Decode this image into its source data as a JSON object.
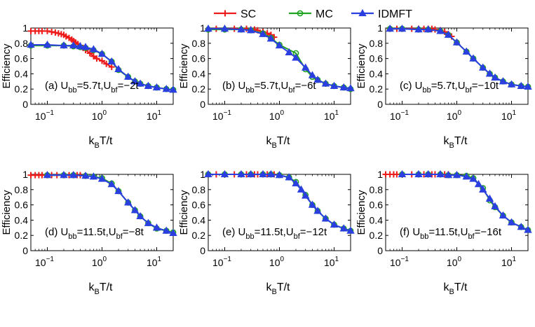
{
  "legend": [
    {
      "name": "SC",
      "color": "#ee1b1b",
      "marker": "plus"
    },
    {
      "name": "MC",
      "color": "#21a421",
      "marker": "circle"
    },
    {
      "name": "IDMFT",
      "color": "#2b3fe0",
      "marker": "triangle"
    }
  ],
  "chart_data": [
    {
      "type": "line",
      "panel_label": "(a) U",
      "ubb_sub": "bb",
      "ubb_val": "=5.7t,U",
      "ubf_sub": "bf",
      "ubf_val": "=−2t",
      "ylabel": "Efficiency",
      "xlabel_k": "k",
      "xlabel_sub": "B",
      "xlabel_rest": "T/t",
      "xscale": "log",
      "xlim": [
        0.05,
        20
      ],
      "ylim": [
        0,
        1
      ],
      "yticks": [
        "0",
        "0.2",
        "0.4",
        "0.6",
        "0.8",
        "1"
      ],
      "xticks": [
        {
          "base": "10",
          "exp": "−1"
        },
        {
          "base": "10",
          "exp": "0"
        },
        {
          "base": "10",
          "exp": "1"
        }
      ],
      "series": [
        {
          "name": "SC",
          "x": [
            0.05,
            0.06,
            0.07,
            0.08,
            0.1,
            0.12,
            0.14,
            0.16,
            0.18,
            0.2,
            0.22,
            0.25,
            0.28,
            0.3,
            0.33,
            0.36,
            0.4,
            0.45,
            0.5,
            0.6,
            0.7,
            0.8,
            1.0,
            1.2,
            1.5
          ],
          "y": [
            0.96,
            0.96,
            0.96,
            0.96,
            0.96,
            0.95,
            0.94,
            0.93,
            0.92,
            0.91,
            0.89,
            0.87,
            0.85,
            0.83,
            0.81,
            0.79,
            0.77,
            0.74,
            0.71,
            0.67,
            0.63,
            0.6,
            0.57,
            0.53,
            0.49
          ]
        },
        {
          "name": "MC",
          "x": [
            0.05,
            0.1,
            0.2,
            0.3,
            0.4,
            0.5,
            0.7,
            1.0,
            1.5,
            2.0,
            3.0,
            4.0,
            5.0,
            7.0,
            10.0,
            15.0,
            20.0
          ],
          "y": [
            0.77,
            0.77,
            0.77,
            0.76,
            0.75,
            0.74,
            0.71,
            0.66,
            0.56,
            0.45,
            0.36,
            0.3,
            0.27,
            0.24,
            0.22,
            0.2,
            0.19
          ]
        },
        {
          "name": "IDMFT",
          "x": [
            0.05,
            0.1,
            0.2,
            0.3,
            0.4,
            0.5,
            0.7,
            1.0,
            1.5,
            2.0,
            3.0,
            4.0,
            5.0,
            7.0,
            10.0,
            15.0,
            20.0
          ],
          "y": [
            0.78,
            0.78,
            0.77,
            0.77,
            0.76,
            0.75,
            0.72,
            0.66,
            0.56,
            0.46,
            0.36,
            0.3,
            0.27,
            0.24,
            0.22,
            0.2,
            0.19
          ]
        }
      ]
    },
    {
      "type": "line",
      "panel_label": "(b) U",
      "ubb_sub": "bb",
      "ubb_val": "=5.7t,U",
      "ubf_sub": "bf",
      "ubf_val": "=−6t",
      "ylabel": "Efficiency",
      "xlabel_k": "k",
      "xlabel_sub": "B",
      "xlabel_rest": "T/t",
      "xscale": "log",
      "xlim": [
        0.05,
        20
      ],
      "ylim": [
        0,
        1
      ],
      "yticks": [
        "0",
        "0.2",
        "0.4",
        "0.6",
        "0.8",
        "1"
      ],
      "xticks": [
        {
          "base": "10",
          "exp": "−1"
        },
        {
          "base": "10",
          "exp": "0"
        },
        {
          "base": "10",
          "exp": "1"
        }
      ],
      "series": [
        {
          "name": "SC",
          "x": [
            0.05,
            0.07,
            0.1,
            0.15,
            0.2,
            0.25,
            0.3,
            0.35,
            0.4,
            0.5,
            0.6,
            0.7,
            0.8
          ],
          "y": [
            0.99,
            0.99,
            0.99,
            0.99,
            0.99,
            0.99,
            0.98,
            0.98,
            0.97,
            0.95,
            0.93,
            0.91,
            0.88
          ]
        },
        {
          "name": "MC",
          "x": [
            0.05,
            0.1,
            0.2,
            0.3,
            0.5,
            0.7,
            1.0,
            2.0,
            3.0,
            4.0,
            5.0,
            7.0,
            10.0,
            15.0,
            20.0
          ],
          "y": [
            0.98,
            0.98,
            0.98,
            0.97,
            0.93,
            0.87,
            0.78,
            0.67,
            0.46,
            0.36,
            0.32,
            0.27,
            0.24,
            0.22,
            0.2
          ]
        },
        {
          "name": "IDMFT",
          "x": [
            0.05,
            0.1,
            0.2,
            0.3,
            0.5,
            0.7,
            1.0,
            1.5,
            2.0,
            3.0,
            4.0,
            5.0,
            7.0,
            10.0,
            15.0,
            20.0
          ],
          "y": [
            0.99,
            0.99,
            0.98,
            0.97,
            0.92,
            0.86,
            0.77,
            0.68,
            0.61,
            0.48,
            0.38,
            0.32,
            0.27,
            0.24,
            0.22,
            0.21
          ]
        }
      ]
    },
    {
      "type": "line",
      "panel_label": "(c) U",
      "ubb_sub": "bb",
      "ubb_val": "=5.7t,U",
      "ubf_sub": "bf",
      "ubf_val": "=−10t",
      "ylabel": "Efficiency",
      "xlabel_k": "k",
      "xlabel_sub": "B",
      "xlabel_rest": "T/t",
      "xscale": "log",
      "xlim": [
        0.05,
        20
      ],
      "ylim": [
        0,
        1
      ],
      "yticks": [
        "0",
        "0.2",
        "0.4",
        "0.6",
        "0.8",
        "1"
      ],
      "xticks": [
        {
          "base": "10",
          "exp": "−1"
        },
        {
          "base": "10",
          "exp": "0"
        },
        {
          "base": "10",
          "exp": "1"
        }
      ],
      "series": [
        {
          "name": "SC",
          "x": [
            0.06,
            0.08,
            0.1,
            0.15,
            0.2,
            0.25,
            0.3,
            0.35,
            0.4,
            0.5,
            0.6,
            0.7,
            0.8
          ],
          "y": [
            0.99,
            0.99,
            0.99,
            0.99,
            0.99,
            0.99,
            0.99,
            0.99,
            0.98,
            0.97,
            0.95,
            0.92,
            0.89
          ]
        },
        {
          "name": "MC",
          "x": [
            0.06,
            0.1,
            0.2,
            0.3,
            0.5,
            0.7,
            1.0,
            1.5,
            2.0,
            3.0,
            4.0,
            5.0,
            7.0,
            10.0,
            15.0,
            20.0
          ],
          "y": [
            0.99,
            0.99,
            0.98,
            0.98,
            0.96,
            0.91,
            0.81,
            0.69,
            0.6,
            0.48,
            0.4,
            0.35,
            0.3,
            0.26,
            0.24,
            0.23
          ]
        },
        {
          "name": "IDMFT",
          "x": [
            0.06,
            0.1,
            0.2,
            0.3,
            0.5,
            0.7,
            1.0,
            1.5,
            2.0,
            3.0,
            4.0,
            5.0,
            7.0,
            10.0,
            15.0,
            20.0
          ],
          "y": [
            0.99,
            0.99,
            0.98,
            0.98,
            0.96,
            0.91,
            0.81,
            0.69,
            0.6,
            0.48,
            0.4,
            0.35,
            0.3,
            0.26,
            0.24,
            0.23
          ]
        }
      ]
    },
    {
      "type": "line",
      "panel_label": "(d) U",
      "ubb_sub": "bb",
      "ubb_val": "=11.5t,U",
      "ubf_sub": "bf",
      "ubf_val": "=−8t",
      "ylabel": "Efficiency",
      "xlabel_k": "k",
      "xlabel_sub": "B",
      "xlabel_rest": "T/t",
      "xscale": "log",
      "xlim": [
        0.05,
        20
      ],
      "ylim": [
        0,
        1
      ],
      "yticks": [
        "0",
        "0.2",
        "0.4",
        "0.6",
        "0.8",
        "1"
      ],
      "xticks": [
        {
          "base": "10",
          "exp": "−1"
        },
        {
          "base": "10",
          "exp": "0"
        },
        {
          "base": "10",
          "exp": "1"
        }
      ],
      "series": [
        {
          "name": "SC",
          "x": [
            0.05,
            0.06,
            0.07,
            0.08,
            0.1,
            0.12,
            0.15,
            0.2,
            0.25,
            0.3,
            0.35,
            0.4
          ],
          "y": [
            0.99,
            0.99,
            0.99,
            0.99,
            0.99,
            0.99,
            0.99,
            0.99,
            0.99,
            0.99,
            0.99,
            0.99
          ]
        },
        {
          "name": "MC",
          "x": [
            0.1,
            0.2,
            0.3,
            0.5,
            0.7,
            1.0,
            1.5,
            2.0,
            3.0,
            4.0,
            5.0,
            7.0,
            10.0,
            15.0,
            20.0
          ],
          "y": [
            0.99,
            0.99,
            0.99,
            0.98,
            0.97,
            0.95,
            0.88,
            0.78,
            0.63,
            0.53,
            0.45,
            0.36,
            0.29,
            0.26,
            0.24
          ]
        },
        {
          "name": "IDMFT",
          "x": [
            0.1,
            0.2,
            0.3,
            0.5,
            0.7,
            1.0,
            1.5,
            2.0,
            3.0,
            4.0,
            5.0,
            7.0,
            10.0,
            15.0,
            20.0
          ],
          "y": [
            0.99,
            0.99,
            0.99,
            0.98,
            0.97,
            0.94,
            0.87,
            0.78,
            0.63,
            0.53,
            0.45,
            0.36,
            0.3,
            0.26,
            0.23
          ]
        }
      ]
    },
    {
      "type": "line",
      "panel_label": "(e) U",
      "ubb_sub": "bb",
      "ubb_val": "=11.5t,U",
      "ubf_sub": "bf",
      "ubf_val": "=−12t",
      "ylabel": "Efficiency",
      "xlabel_k": "k",
      "xlabel_sub": "B",
      "xlabel_rest": "T/t",
      "xscale": "log",
      "xlim": [
        0.05,
        20
      ],
      "ylim": [
        0,
        1
      ],
      "yticks": [
        "0",
        "0.2",
        "0.4",
        "0.6",
        "0.8",
        "1"
      ],
      "xticks": [
        {
          "base": "10",
          "exp": "−1"
        },
        {
          "base": "10",
          "exp": "0"
        },
        {
          "base": "10",
          "exp": "1"
        }
      ],
      "series": [
        {
          "name": "SC",
          "x": [
            0.05,
            0.07,
            0.1,
            0.15,
            0.2,
            0.25,
            0.3,
            0.35,
            0.4,
            0.5,
            0.6,
            0.7,
            0.8
          ],
          "y": [
            1.0,
            1.0,
            1.0,
            1.0,
            1.0,
            1.0,
            1.0,
            1.0,
            1.0,
            1.0,
            1.0,
            1.0,
            1.0
          ]
        },
        {
          "name": "MC",
          "x": [
            0.05,
            0.1,
            0.2,
            0.3,
            0.5,
            0.7,
            1.0,
            1.5,
            2.0,
            3.0,
            4.0,
            5.0,
            7.0,
            10.0,
            15.0,
            20.0
          ],
          "y": [
            1.0,
            1.0,
            1.0,
            1.0,
            1.0,
            1.0,
            0.99,
            0.96,
            0.9,
            0.73,
            0.6,
            0.52,
            0.42,
            0.34,
            0.29,
            0.26
          ]
        },
        {
          "name": "IDMFT",
          "x": [
            0.05,
            0.1,
            0.2,
            0.3,
            0.5,
            0.7,
            1.0,
            1.5,
            2.0,
            2.5,
            3.0,
            4.0,
            5.0,
            7.0,
            10.0,
            15.0,
            20.0
          ],
          "y": [
            1.0,
            1.0,
            1.0,
            1.0,
            1.0,
            1.0,
            0.99,
            0.96,
            0.88,
            0.8,
            0.72,
            0.6,
            0.52,
            0.42,
            0.34,
            0.29,
            0.26
          ]
        }
      ]
    },
    {
      "type": "line",
      "panel_label": "(f) U",
      "ubb_sub": "bb",
      "ubb_val": "=11.5t,U",
      "ubf_sub": "bf",
      "ubf_val": "=−16t",
      "ylabel": "Efficiency",
      "xlabel_k": "k",
      "xlabel_sub": "B",
      "xlabel_rest": "T/t",
      "xscale": "log",
      "xlim": [
        0.05,
        20
      ],
      "ylim": [
        0,
        1
      ],
      "yticks": [
        "0",
        "0.2",
        "0.4",
        "0.6",
        "0.8",
        "1"
      ],
      "xticks": [
        {
          "base": "10",
          "exp": "−1"
        },
        {
          "base": "10",
          "exp": "0"
        },
        {
          "base": "10",
          "exp": "1"
        }
      ],
      "series": [
        {
          "name": "SC",
          "x": [
            0.05,
            0.06,
            0.07,
            0.08,
            0.1,
            0.15,
            0.2,
            0.25,
            0.3,
            0.35,
            0.4,
            0.5,
            0.6,
            0.7
          ],
          "y": [
            1.0,
            1.0,
            1.0,
            1.0,
            1.0,
            1.0,
            1.0,
            1.0,
            1.0,
            1.0,
            1.0,
            1.0,
            1.0,
            1.0
          ]
        },
        {
          "name": "MC",
          "x": [
            0.1,
            0.2,
            0.3,
            0.5,
            0.7,
            1.0,
            1.5,
            2.0,
            3.0,
            4.0,
            5.0,
            7.0,
            10.0,
            15.0,
            20.0
          ],
          "y": [
            1.0,
            1.0,
            1.0,
            1.0,
            0.99,
            0.99,
            0.98,
            0.95,
            0.82,
            0.66,
            0.57,
            0.46,
            0.37,
            0.31,
            0.27
          ]
        },
        {
          "name": "IDMFT",
          "x": [
            0.1,
            0.2,
            0.3,
            0.5,
            0.7,
            1.0,
            1.5,
            2.0,
            2.5,
            3.0,
            4.0,
            5.0,
            7.0,
            10.0,
            15.0,
            20.0
          ],
          "y": [
            1.0,
            1.0,
            1.0,
            1.0,
            0.99,
            0.99,
            0.97,
            0.94,
            0.87,
            0.8,
            0.68,
            0.58,
            0.46,
            0.37,
            0.31,
            0.27
          ]
        }
      ]
    }
  ]
}
